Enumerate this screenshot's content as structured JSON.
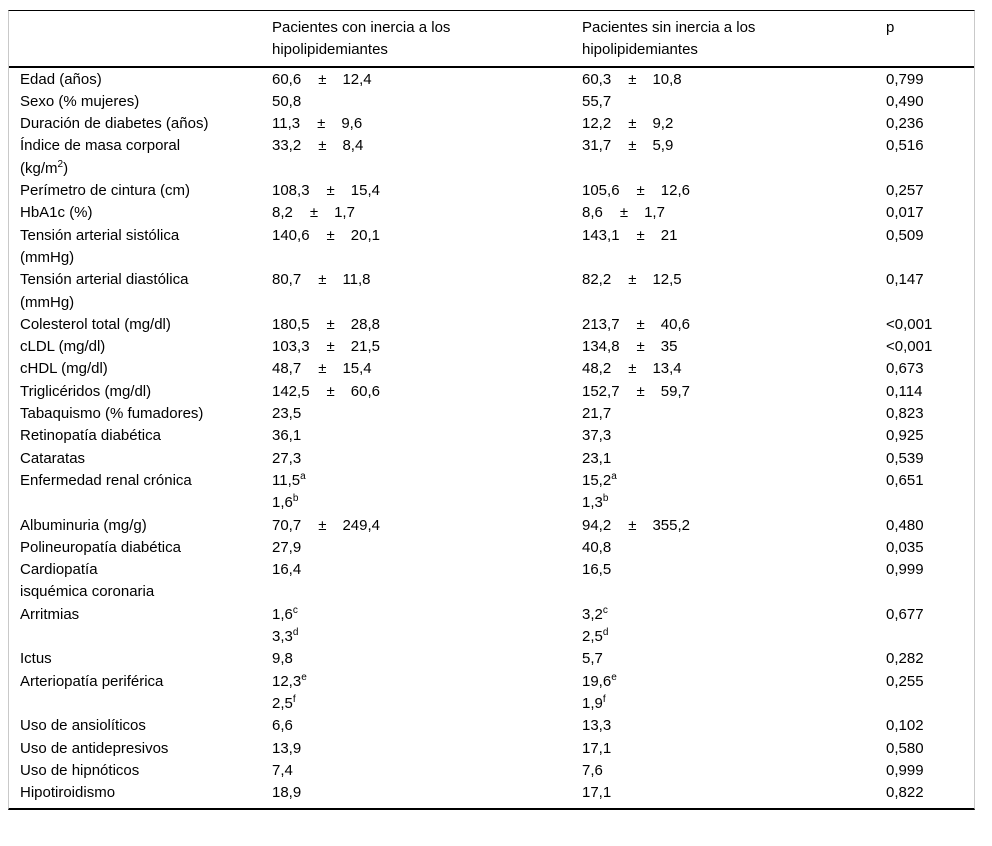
{
  "table": {
    "pm_symbol": "±",
    "header": {
      "col_label": "",
      "col_inercia": "Pacientes con inercia a los hipolipidemiantes",
      "col_no_inercia": "Pacientes sin inercia a los hipolipidemiantes",
      "col_p": "p"
    },
    "rows": [
      {
        "label": [
          "Edad (años)"
        ],
        "g1": [
          {
            "v": "60,6",
            "sd": "12,4"
          }
        ],
        "g2": [
          {
            "v": "60,3",
            "sd": "10,8"
          }
        ],
        "p": "0,799"
      },
      {
        "label": [
          "Sexo (% mujeres)"
        ],
        "g1": [
          {
            "v": "50,8"
          }
        ],
        "g2": [
          {
            "v": "55,7"
          }
        ],
        "p": "0,490"
      },
      {
        "label": [
          "Duración de diabetes (años)"
        ],
        "g1": [
          {
            "v": "11,3",
            "sd": "9,6"
          }
        ],
        "g2": [
          {
            "v": "12,2",
            "sd": "9,2"
          }
        ],
        "p": "0,236"
      },
      {
        "label": [
          "Índice de masa corporal",
          "(kg/m^{2})"
        ],
        "g1": [
          {
            "v": "33,2",
            "sd": "8,4"
          }
        ],
        "g2": [
          {
            "v": "31,7",
            "sd": "5,9"
          }
        ],
        "p": "0,516"
      },
      {
        "label": [
          "Perímetro de cintura (cm)"
        ],
        "g1": [
          {
            "v": "108,3",
            "sd": "15,4"
          }
        ],
        "g2": [
          {
            "v": "105,6",
            "sd": "12,6"
          }
        ],
        "p": "0,257"
      },
      {
        "label": [
          "HbA1c (%)"
        ],
        "g1": [
          {
            "v": "8,2",
            "sd": "1,7"
          }
        ],
        "g2": [
          {
            "v": "8,6",
            "sd": "1,7"
          }
        ],
        "p": "0,017"
      },
      {
        "label": [
          "Tensión arterial sistólica",
          "(mmHg)"
        ],
        "g1": [
          {
            "v": "140,6",
            "sd": "20,1"
          }
        ],
        "g2": [
          {
            "v": "143,1",
            "sd": "21"
          }
        ],
        "p": "0,509"
      },
      {
        "label": [
          "Tensión arterial diastólica",
          "(mmHg)"
        ],
        "g1": [
          {
            "v": "80,7",
            "sd": "11,8"
          }
        ],
        "g2": [
          {
            "v": "82,2",
            "sd": "12,5"
          }
        ],
        "p": "0,147"
      },
      {
        "label": [
          "Colesterol total (mg/dl)"
        ],
        "g1": [
          {
            "v": "180,5",
            "sd": "28,8"
          }
        ],
        "g2": [
          {
            "v": "213,7",
            "sd": "40,6"
          }
        ],
        "p": "<0,001"
      },
      {
        "label": [
          "cLDL (mg/dl)"
        ],
        "g1": [
          {
            "v": "103,3",
            "sd": "21,5"
          }
        ],
        "g2": [
          {
            "v": "134,8",
            "sd": "35"
          }
        ],
        "p": "<0,001"
      },
      {
        "label": [
          "cHDL (mg/dl)"
        ],
        "g1": [
          {
            "v": "48,7",
            "sd": "15,4"
          }
        ],
        "g2": [
          {
            "v": "48,2",
            "sd": "13,4"
          }
        ],
        "p": "0,673"
      },
      {
        "label": [
          "Triglicéridos (mg/dl)"
        ],
        "g1": [
          {
            "v": "142,5",
            "sd": "60,6"
          }
        ],
        "g2": [
          {
            "v": "152,7",
            "sd": "59,7"
          }
        ],
        "p": "0,114"
      },
      {
        "label": [
          "Tabaquismo (% fumadores)"
        ],
        "g1": [
          {
            "v": "23,5"
          }
        ],
        "g2": [
          {
            "v": "21,7"
          }
        ],
        "p": "0,823"
      },
      {
        "label": [
          "Retinopatía diabética"
        ],
        "g1": [
          {
            "v": "36,1"
          }
        ],
        "g2": [
          {
            "v": "37,3"
          }
        ],
        "p": "0,925"
      },
      {
        "label": [
          "Cataratas"
        ],
        "g1": [
          {
            "v": "27,3"
          }
        ],
        "g2": [
          {
            "v": "23,1"
          }
        ],
        "p": "0,539"
      },
      {
        "label": [
          "Enfermedad renal crónica"
        ],
        "g1": [
          {
            "v": "11,5^{a}"
          },
          {
            "v": "1,6^{b}"
          }
        ],
        "g2": [
          {
            "v": "15,2^{a}"
          },
          {
            "v": "1,3^{b}"
          }
        ],
        "p": "0,651"
      },
      {
        "label": [
          "Albuminuria (mg/g)"
        ],
        "g1": [
          {
            "v": "70,7",
            "sd": "249,4"
          }
        ],
        "g2": [
          {
            "v": "94,2",
            "sd": "355,2"
          }
        ],
        "p": "0,480"
      },
      {
        "label": [
          "Polineuropatía diabética"
        ],
        "g1": [
          {
            "v": "27,9"
          }
        ],
        "g2": [
          {
            "v": "40,8"
          }
        ],
        "p": "0,035"
      },
      {
        "label": [
          "Cardiopatía",
          "isquémica coronaria"
        ],
        "g1": [
          {
            "v": "16,4"
          }
        ],
        "g2": [
          {
            "v": "16,5"
          }
        ],
        "p": "0,999"
      },
      {
        "label": [
          "Arritmias"
        ],
        "g1": [
          {
            "v": "1,6^{c}"
          },
          {
            "v": "3,3^{d}"
          }
        ],
        "g2": [
          {
            "v": "3,2^{c}"
          },
          {
            "v": "2,5^{d}"
          }
        ],
        "p": "0,677"
      },
      {
        "label": [
          "Ictus"
        ],
        "g1": [
          {
            "v": "9,8"
          }
        ],
        "g2": [
          {
            "v": "5,7"
          }
        ],
        "p": "0,282"
      },
      {
        "label": [
          "Arteriopatía periférica"
        ],
        "g1": [
          {
            "v": "12,3^{e}"
          },
          {
            "v": "2,5^{f}"
          }
        ],
        "g2": [
          {
            "v": "19,6^{e}"
          },
          {
            "v": "1,9^{f}"
          }
        ],
        "p": "0,255"
      },
      {
        "label": [
          "Uso de ansiolíticos"
        ],
        "g1": [
          {
            "v": "6,6"
          }
        ],
        "g2": [
          {
            "v": "13,3"
          }
        ],
        "p": "0,102"
      },
      {
        "label": [
          "Uso de antidepresivos"
        ],
        "g1": [
          {
            "v": "13,9"
          }
        ],
        "g2": [
          {
            "v": "17,1"
          }
        ],
        "p": "0,580"
      },
      {
        "label": [
          "Uso de hipnóticos"
        ],
        "g1": [
          {
            "v": "7,4"
          }
        ],
        "g2": [
          {
            "v": "7,6"
          }
        ],
        "p": "0,999"
      },
      {
        "label": [
          "Hipotiroidismo"
        ],
        "g1": [
          {
            "v": "18,9"
          }
        ],
        "g2": [
          {
            "v": "17,1"
          }
        ],
        "p": "0,822"
      }
    ]
  }
}
